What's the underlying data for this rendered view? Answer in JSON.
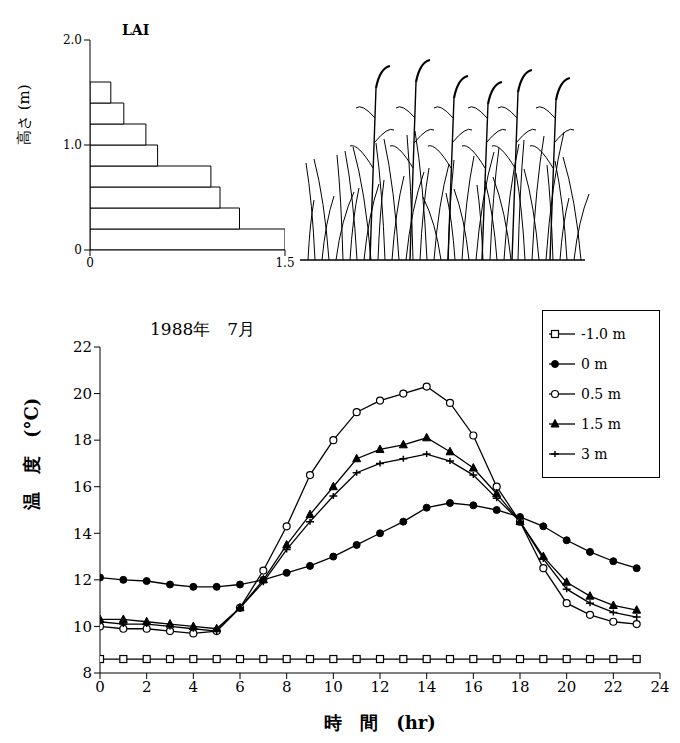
{
  "chart_data": [
    {
      "type": "bar",
      "orientation": "horizontal",
      "title": "LAI",
      "y_label": "高さ (m)",
      "bins": [
        0,
        0.2,
        0.4,
        0.6,
        0.8,
        1.0,
        1.2,
        1.4,
        1.6
      ],
      "values": [
        1.5,
        1.15,
        1.0,
        0.93,
        0.52,
        0.43,
        0.26,
        0.16
      ],
      "color": "#ffffff",
      "xlim": [
        0,
        1.5
      ],
      "xticks": [
        0,
        1.5
      ],
      "ylim": [
        0,
        2
      ],
      "yticks": [
        0,
        {
          "value": 1,
          "label": "1.0"
        },
        {
          "value": 2,
          "label": "2.0"
        }
      ]
    },
    {
      "type": "line",
      "title": "1988年　7月",
      "x_label": "時　間　(hr)",
      "y_label": "温　度　(°C)",
      "x": [
        0,
        1,
        2,
        3,
        4,
        5,
        6,
        7,
        8,
        9,
        10,
        11,
        12,
        13,
        14,
        15,
        16,
        17,
        18,
        19,
        20,
        21,
        22,
        23
      ],
      "xlim": [
        0,
        24
      ],
      "xticks": [
        0,
        2,
        4,
        6,
        8,
        10,
        12,
        14,
        16,
        18,
        20,
        22,
        24
      ],
      "ylim": [
        8,
        22
      ],
      "yticks": [
        8,
        10,
        12,
        14,
        16,
        18,
        20,
        22
      ],
      "legend": "upper right",
      "series": [
        {
          "name": "-1.0 m",
          "color": "#000000",
          "marker": "square_open",
          "values": [
            8.6,
            8.6,
            8.6,
            8.6,
            8.6,
            8.6,
            8.6,
            8.6,
            8.6,
            8.6,
            8.6,
            8.6,
            8.6,
            8.6,
            8.6,
            8.6,
            8.6,
            8.6,
            8.6,
            8.6,
            8.6,
            8.6,
            8.6,
            8.6
          ]
        },
        {
          "name": "0 m",
          "color": "#000000",
          "marker": "circle_filled",
          "values": [
            12.1,
            12.0,
            11.95,
            11.8,
            11.7,
            11.7,
            11.8,
            12.0,
            12.3,
            12.6,
            13.0,
            13.5,
            14.0,
            14.5,
            15.1,
            15.3,
            15.2,
            15.0,
            14.7,
            14.3,
            13.7,
            13.2,
            12.8,
            12.5
          ]
        },
        {
          "name": "0.5 m",
          "color": "#000000",
          "marker": "circle_open",
          "values": [
            10.0,
            9.9,
            9.9,
            9.8,
            9.7,
            9.8,
            10.8,
            12.4,
            14.3,
            16.5,
            18.0,
            19.2,
            19.7,
            20.0,
            20.3,
            19.6,
            18.2,
            16.0,
            14.5,
            12.5,
            11.0,
            10.5,
            10.2,
            10.1
          ]
        },
        {
          "name": "1.5 m",
          "color": "#000000",
          "marker": "triangle",
          "values": [
            10.3,
            10.3,
            10.2,
            10.1,
            10.0,
            9.9,
            10.8,
            12.0,
            13.5,
            14.8,
            16.0,
            17.2,
            17.6,
            17.8,
            18.1,
            17.5,
            16.8,
            15.7,
            14.5,
            13.0,
            11.9,
            11.3,
            10.9,
            10.7
          ]
        },
        {
          "name": "3 m",
          "color": "#000000",
          "marker": "plus",
          "values": [
            10.2,
            10.1,
            10.1,
            10.0,
            9.9,
            9.8,
            10.8,
            11.9,
            13.3,
            14.5,
            15.6,
            16.6,
            17.0,
            17.2,
            17.4,
            17.1,
            16.5,
            15.5,
            14.5,
            12.9,
            11.6,
            11.0,
            10.6,
            10.4
          ]
        }
      ]
    }
  ]
}
